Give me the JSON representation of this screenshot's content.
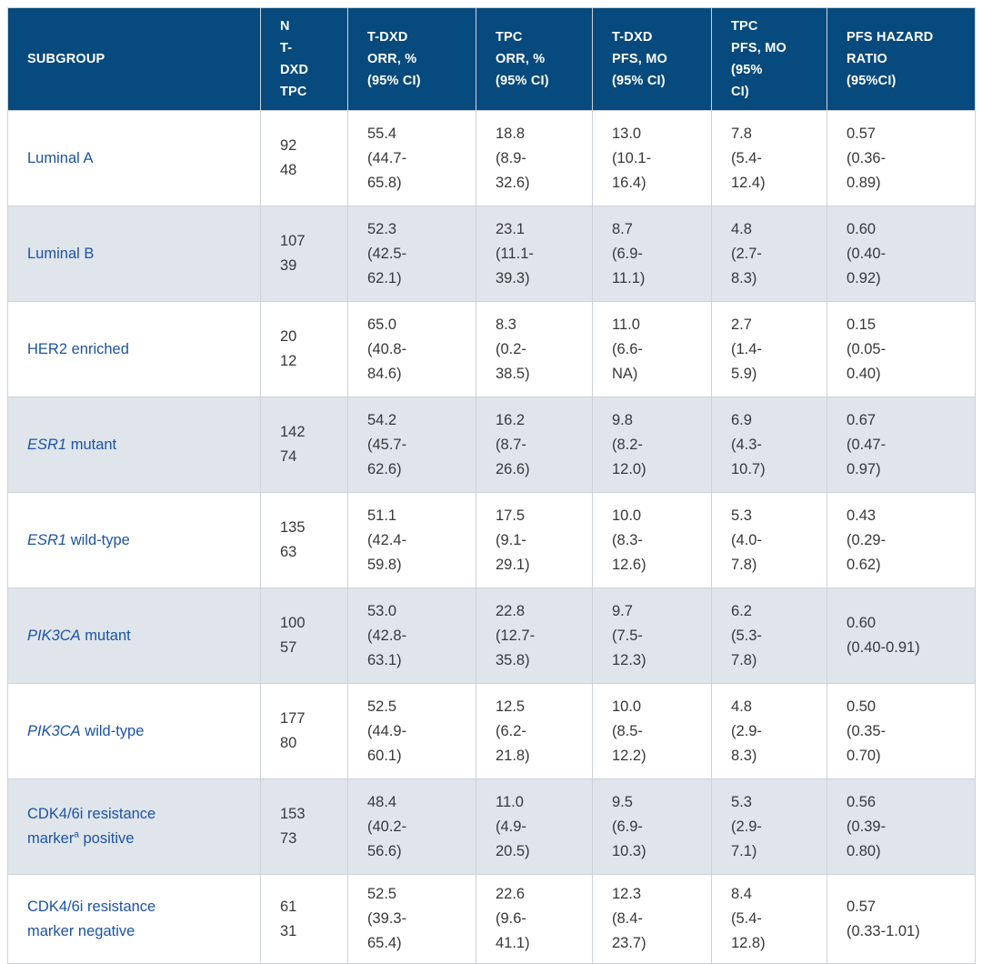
{
  "colors": {
    "header_bg": "#074a7d",
    "header_text": "#ffffff",
    "stripe_bg": "#dfe5eb",
    "row_bg": "#ffffff",
    "border": "#ccd2d8",
    "subgroup_text": "#1c53a5",
    "body_text": "#38383b"
  },
  "table": {
    "columns": [
      {
        "key": "subgroup",
        "label": "SUBGROUP"
      },
      {
        "key": "n-tdxd-tpc",
        "label": "N\nT-\nDXD\nTPC"
      },
      {
        "key": "tdxd-orr",
        "label": "T-DXD\nORR, %\n(95% CI)"
      },
      {
        "key": "tpc-orr",
        "label": "TPC\nORR, %\n(95% CI)"
      },
      {
        "key": "tdxd-pfs",
        "label": "T-DXD\nPFS, MO\n(95% CI)"
      },
      {
        "key": "tpc-pfs",
        "label": "TPC\nPFS, MO\n(95%\nCI)"
      },
      {
        "key": "pfs-hazard-ratio",
        "label": "PFS HAZARD\nRATIO\n(95%CI)"
      }
    ],
    "rows": [
      {
        "subgroup": [
          {
            "text": "Luminal A"
          }
        ],
        "cells": [
          "92\n48",
          "55.4\n(44.7-\n65.8)",
          "18.8\n(8.9-\n32.6)",
          "13.0\n(10.1-\n16.4)",
          "7.8\n(5.4-\n12.4)",
          "0.57\n(0.36-\n0.89)"
        ]
      },
      {
        "subgroup": [
          {
            "text": "Luminal B"
          }
        ],
        "cells": [
          "107\n39",
          "52.3\n(42.5-\n62.1)",
          "23.1\n(11.1-\n39.3)",
          "8.7\n(6.9-\n11.1)",
          "4.8\n(2.7-\n8.3)",
          "0.60\n(0.40-\n0.92)"
        ]
      },
      {
        "subgroup": [
          {
            "text": "HER2 enriched"
          }
        ],
        "cells": [
          "20\n12",
          "65.0\n(40.8-\n84.6)",
          "8.3\n(0.2-\n38.5)",
          "11.0\n(6.6-\nNA)",
          "2.7\n(1.4-\n5.9)",
          "0.15\n(0.05-\n0.40)"
        ]
      },
      {
        "subgroup": [
          {
            "text": "ESR1",
            "italic": true
          },
          {
            "text": " mutant"
          }
        ],
        "cells": [
          "142\n74",
          "54.2\n(45.7-\n62.6)",
          "16.2\n(8.7-\n26.6)",
          "9.8\n(8.2-\n12.0)",
          "6.9\n(4.3-\n10.7)",
          "0.67\n(0.47-\n0.97)"
        ]
      },
      {
        "subgroup": [
          {
            "text": "ESR1",
            "italic": true
          },
          {
            "text": " wild-type"
          }
        ],
        "cells": [
          "135\n63",
          "51.1\n(42.4-\n59.8)",
          "17.5\n(9.1-\n29.1)",
          "10.0\n(8.3-\n12.6)",
          "5.3\n(4.0-\n7.8)",
          "0.43\n(0.29-\n0.62)"
        ]
      },
      {
        "subgroup": [
          {
            "text": "PIK3CA",
            "italic": true
          },
          {
            "text": " mutant"
          }
        ],
        "cells": [
          "100\n57",
          "53.0\n(42.8-\n63.1)",
          "22.8\n(12.7-\n35.8)",
          "9.7\n(7.5-\n12.3)",
          "6.2\n(5.3-\n7.8)",
          "0.60\n(0.40-0.91)"
        ]
      },
      {
        "subgroup": [
          {
            "text": "PIK3CA",
            "italic": true
          },
          {
            "text": " wild-type"
          }
        ],
        "cells": [
          "177\n80",
          "52.5\n(44.9-\n60.1)",
          "12.5\n(6.2-\n21.8)",
          "10.0\n(8.5-\n12.2)",
          "4.8\n(2.9-\n8.3)",
          "0.50\n(0.35-\n0.70)"
        ]
      },
      {
        "subgroup": [
          {
            "text": "CDK4/6i resistance\nmarker"
          },
          {
            "text": "a",
            "sup": true
          },
          {
            "text": " positive"
          }
        ],
        "cells": [
          "153\n73",
          "48.4\n(40.2-\n56.6)",
          "11.0\n(4.9-\n20.5)",
          "9.5\n(6.9-\n10.3)",
          "5.3\n(2.9-\n7.1)",
          "0.56\n(0.39-\n0.80)"
        ]
      },
      {
        "subgroup": [
          {
            "text": "CDK4/6i resistance\nmarker negative"
          }
        ],
        "cells": [
          "61\n31",
          "52.5\n(39.3-\n65.4)",
          "22.6\n(9.6-\n41.1)",
          "12.3\n(8.4-\n23.7)",
          "8.4\n(5.4-\n12.8)",
          "0.57\n(0.33-1.01)"
        ]
      }
    ]
  }
}
